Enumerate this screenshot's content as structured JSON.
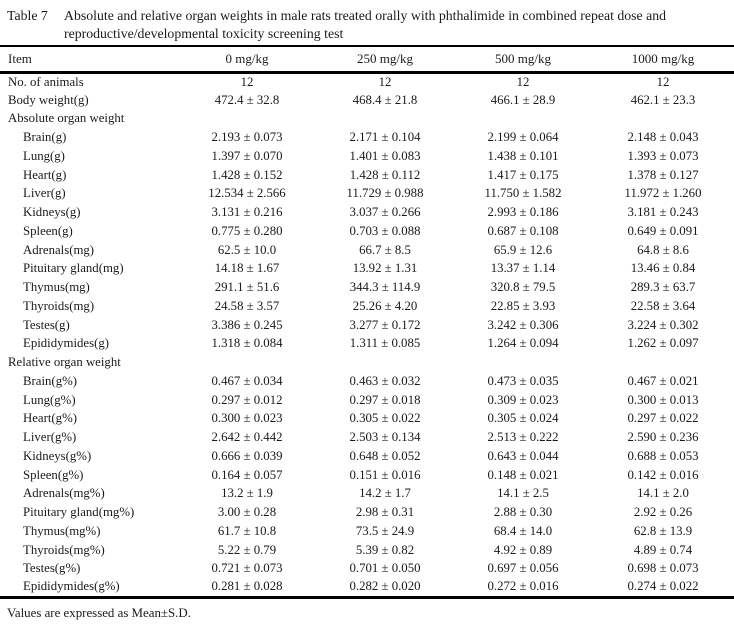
{
  "caption": {
    "label": "Table 7",
    "title": "Absolute and relative organ weights in male rats treated orally with phthalimide in combined repeat dose and reproductive/developmental toxicity screening test"
  },
  "table": {
    "columns": [
      "Item",
      "0 mg/kg",
      "250 mg/kg",
      "500 mg/kg",
      "1000 mg/kg"
    ],
    "rows": [
      {
        "label": "No. of animals",
        "type": "plain",
        "values": [
          "12",
          "12",
          "12",
          "12"
        ]
      },
      {
        "label": "Body weight(g)",
        "type": "plain",
        "values": [
          "472.4 ± 32.8",
          "468.4 ± 21.8",
          "466.1 ± 28.9",
          "462.1 ± 23.3"
        ]
      },
      {
        "label": "Absolute organ weight",
        "type": "section",
        "values": [
          "",
          "",
          "",
          ""
        ]
      },
      {
        "label": "Brain(g)",
        "type": "indent",
        "values": [
          "2.193 ± 0.073",
          "2.171 ± 0.104",
          "2.199 ± 0.064",
          "2.148 ± 0.043"
        ]
      },
      {
        "label": "Lung(g)",
        "type": "indent",
        "values": [
          "1.397 ± 0.070",
          "1.401 ± 0.083",
          "1.438 ± 0.101",
          "1.393 ± 0.073"
        ]
      },
      {
        "label": "Heart(g)",
        "type": "indent",
        "values": [
          "1.428 ± 0.152",
          "1.428 ± 0.112",
          "1.417 ± 0.175",
          "1.378 ± 0.127"
        ]
      },
      {
        "label": "Liver(g)",
        "type": "indent",
        "values": [
          "12.534 ± 2.566",
          "11.729 ± 0.988",
          "11.750 ± 1.582",
          "11.972 ± 1.260"
        ]
      },
      {
        "label": "Kidneys(g)",
        "type": "indent",
        "values": [
          "3.131 ± 0.216",
          "3.037 ± 0.266",
          "2.993 ± 0.186",
          "3.181 ± 0.243"
        ]
      },
      {
        "label": "Spleen(g)",
        "type": "indent",
        "values": [
          "0.775 ± 0.280",
          "0.703 ± 0.088",
          "0.687 ± 0.108",
          "0.649 ± 0.091"
        ]
      },
      {
        "label": "Adrenals(mg)",
        "type": "indent",
        "values": [
          "62.5 ± 10.0",
          "66.7 ± 8.5",
          "65.9 ± 12.6",
          "64.8 ± 8.6"
        ]
      },
      {
        "label": "Pituitary gland(mg)",
        "type": "indent",
        "values": [
          "14.18 ± 1.67",
          "13.92 ± 1.31",
          "13.37 ± 1.14",
          "13.46 ± 0.84"
        ]
      },
      {
        "label": "Thymus(mg)",
        "type": "indent",
        "values": [
          "291.1 ± 51.6",
          "344.3 ± 114.9",
          "320.8 ± 79.5",
          "289.3 ± 63.7"
        ]
      },
      {
        "label": "Thyroids(mg)",
        "type": "indent",
        "values": [
          "24.58 ± 3.57",
          "25.26 ± 4.20",
          "22.85 ± 3.93",
          "22.58 ± 3.64"
        ]
      },
      {
        "label": "Testes(g)",
        "type": "indent",
        "values": [
          "3.386 ± 0.245",
          "3.277 ± 0.172",
          "3.242 ± 0.306",
          "3.224 ± 0.302"
        ]
      },
      {
        "label": "Epididymides(g)",
        "type": "indent",
        "values": [
          "1.318 ± 0.084",
          "1.311 ± 0.085",
          "1.264 ± 0.094",
          "1.262 ± 0.097"
        ]
      },
      {
        "label": "Relative organ weight",
        "type": "section",
        "values": [
          "",
          "",
          "",
          ""
        ]
      },
      {
        "label": "Brain(g%)",
        "type": "indent",
        "values": [
          "0.467 ± 0.034",
          "0.463 ± 0.032",
          "0.473 ± 0.035",
          "0.467 ± 0.021"
        ]
      },
      {
        "label": "Lung(g%)",
        "type": "indent",
        "values": [
          "0.297 ± 0.012",
          "0.297 ± 0.018",
          "0.309 ± 0.023",
          "0.300 ± 0.013"
        ]
      },
      {
        "label": "Heart(g%)",
        "type": "indent",
        "values": [
          "0.300 ± 0.023",
          "0.305 ± 0.022",
          "0.305 ± 0.024",
          "0.297 ± 0.022"
        ]
      },
      {
        "label": "Liver(g%)",
        "type": "indent",
        "values": [
          "2.642 ± 0.442",
          "2.503 ± 0.134",
          "2.513 ± 0.222",
          "2.590 ± 0.236"
        ]
      },
      {
        "label": "Kidneys(g%)",
        "type": "indent",
        "values": [
          "0.666 ± 0.039",
          "0.648 ± 0.052",
          "0.643 ± 0.044",
          "0.688 ± 0.053"
        ]
      },
      {
        "label": "Spleen(g%)",
        "type": "indent",
        "values": [
          "0.164 ± 0.057",
          "0.151 ± 0.016",
          "0.148 ± 0.021",
          "0.142 ± 0.016"
        ]
      },
      {
        "label": "Adrenals(mg%)",
        "type": "indent",
        "values": [
          "13.2 ± 1.9",
          "14.2 ± 1.7",
          "14.1 ± 2.5",
          "14.1 ± 2.0"
        ]
      },
      {
        "label": "Pituitary gland(mg%)",
        "type": "indent",
        "values": [
          "3.00 ± 0.28",
          "2.98 ± 0.31",
          "2.88 ± 0.30",
          "2.92 ± 0.26"
        ]
      },
      {
        "label": "Thymus(mg%)",
        "type": "indent",
        "values": [
          "61.7 ± 10.8",
          "73.5 ± 24.9",
          "68.4 ± 14.0",
          "62.8 ± 13.9"
        ]
      },
      {
        "label": "Thyroids(mg%)",
        "type": "indent",
        "values": [
          "5.22 ± 0.79",
          "5.39 ± 0.82",
          "4.92 ± 0.89",
          "4.89 ± 0.74"
        ]
      },
      {
        "label": "Testes(g%)",
        "type": "indent",
        "values": [
          "0.721 ± 0.073",
          "0.701 ± 0.050",
          "0.697 ± 0.056",
          "0.698 ± 0.073"
        ]
      },
      {
        "label": "Epididymides(g%)",
        "type": "indent",
        "values": [
          "0.281 ± 0.028",
          "0.282 ± 0.020",
          "0.272 ± 0.016",
          "0.274 ± 0.022"
        ]
      }
    ]
  },
  "footnote": "Values are expressed as Mean±S.D."
}
